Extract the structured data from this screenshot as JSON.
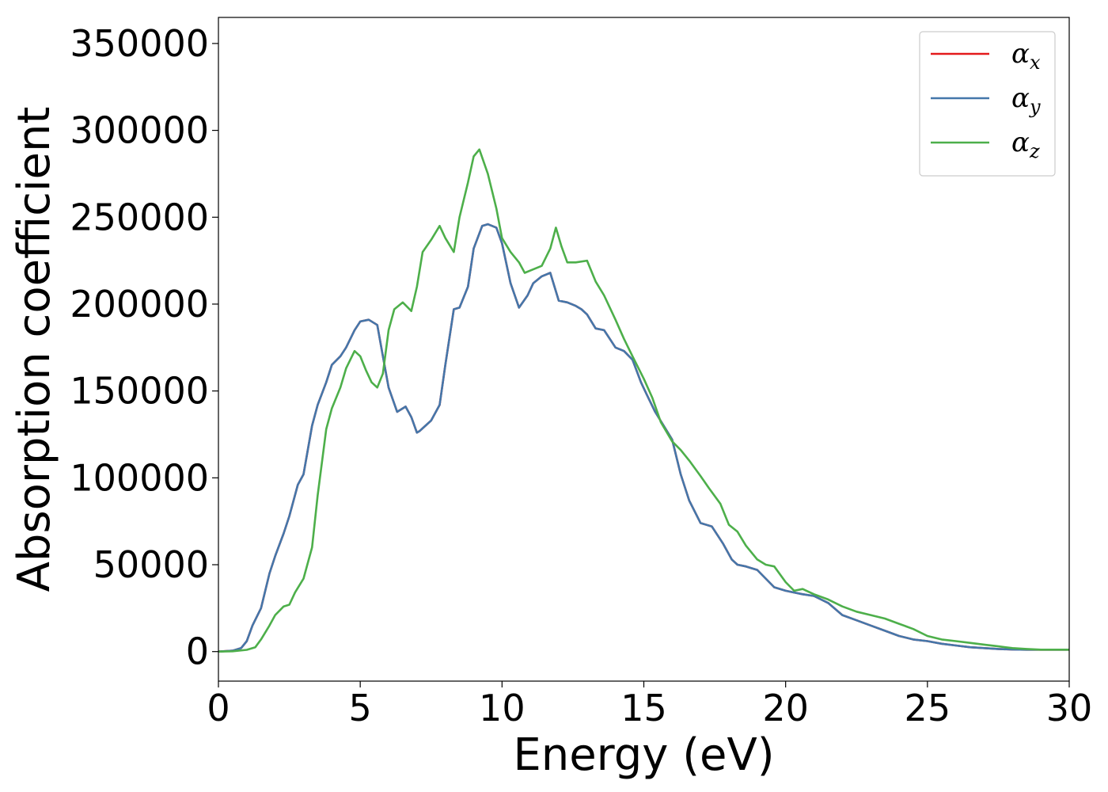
{
  "chart_data": {
    "type": "line",
    "xlabel": "Energy (eV)",
    "ylabel": "Absorption coefficient",
    "xlim": [
      0,
      30
    ],
    "ylim": [
      -17000,
      365000
    ],
    "x_ticks": [
      0,
      5,
      10,
      15,
      20,
      25,
      30
    ],
    "x_tick_labels": [
      "0",
      "5",
      "10",
      "15",
      "20",
      "25",
      "30"
    ],
    "y_ticks": [
      0,
      50000,
      100000,
      150000,
      200000,
      250000,
      300000,
      350000
    ],
    "y_tick_labels": [
      "0",
      "50000",
      "100000",
      "150000",
      "200000",
      "250000",
      "300000",
      "350000"
    ],
    "grid": false,
    "legend_position": "top-right",
    "series": [
      {
        "name": "α",
        "subscript": "x",
        "color": "#e41a1c",
        "x": [
          0,
          0.5,
          0.8,
          1.0,
          1.2,
          1.5,
          1.8,
          2.0,
          2.3,
          2.5,
          2.8,
          3.0,
          3.3,
          3.5,
          3.8,
          4.0,
          4.3,
          4.5,
          4.8,
          5.0,
          5.3,
          5.6,
          5.8,
          6.0,
          6.3,
          6.6,
          6.8,
          7.0,
          7.1,
          7.3,
          7.5,
          7.8,
          8.0,
          8.3,
          8.5,
          8.8,
          9.0,
          9.3,
          9.5,
          9.8,
          10.0,
          10.3,
          10.6,
          10.9,
          11.1,
          11.4,
          11.7,
          12.0,
          12.3,
          12.6,
          12.8,
          13.0,
          13.3,
          13.6,
          13.8,
          14.0,
          14.3,
          14.6,
          14.9,
          15.1,
          15.4,
          15.7,
          16.0,
          16.3,
          16.6,
          17.0,
          17.4,
          17.8,
          18.1,
          18.3,
          18.6,
          19.0,
          19.3,
          19.6,
          20.0,
          20.3,
          20.6,
          21.0,
          21.5,
          22.0,
          22.5,
          23.0,
          23.5,
          24.0,
          24.5,
          25.0,
          25.5,
          26.0,
          26.5,
          27.0,
          27.5,
          28.0,
          28.5,
          29.0,
          29.5,
          30.0
        ],
        "values": [
          0,
          500,
          2000,
          6000,
          15000,
          25000,
          45000,
          55000,
          68000,
          78000,
          96000,
          102000,
          130000,
          142000,
          155000,
          165000,
          170000,
          175000,
          185000,
          190000,
          191000,
          188000,
          170000,
          152000,
          138000,
          141000,
          135000,
          126000,
          127000,
          130000,
          133000,
          142000,
          165000,
          197000,
          198000,
          210000,
          232000,
          245000,
          246000,
          244000,
          235000,
          212000,
          198000,
          205000,
          212000,
          216000,
          218000,
          202000,
          201000,
          199000,
          197000,
          194000,
          186000,
          185000,
          180000,
          175000,
          173000,
          168000,
          155000,
          148000,
          138000,
          130000,
          122000,
          102000,
          87000,
          74000,
          72000,
          62000,
          53000,
          50000,
          49000,
          47000,
          42000,
          37000,
          35000,
          34000,
          33000,
          32000,
          28000,
          21000,
          18000,
          15000,
          12000,
          9000,
          7000,
          6000,
          4500,
          3500,
          2500,
          2000,
          1500,
          1200,
          1100,
          1100,
          1100,
          1100
        ]
      },
      {
        "name": "α",
        "subscript": "y",
        "color": "#4477aa",
        "x": [
          0,
          0.5,
          0.8,
          1.0,
          1.2,
          1.5,
          1.8,
          2.0,
          2.3,
          2.5,
          2.8,
          3.0,
          3.3,
          3.5,
          3.8,
          4.0,
          4.3,
          4.5,
          4.8,
          5.0,
          5.3,
          5.6,
          5.8,
          6.0,
          6.3,
          6.6,
          6.8,
          7.0,
          7.1,
          7.3,
          7.5,
          7.8,
          8.0,
          8.3,
          8.5,
          8.8,
          9.0,
          9.3,
          9.5,
          9.8,
          10.0,
          10.3,
          10.6,
          10.9,
          11.1,
          11.4,
          11.7,
          12.0,
          12.3,
          12.6,
          12.8,
          13.0,
          13.3,
          13.6,
          13.8,
          14.0,
          14.3,
          14.6,
          14.9,
          15.1,
          15.4,
          15.7,
          16.0,
          16.3,
          16.6,
          17.0,
          17.4,
          17.8,
          18.1,
          18.3,
          18.6,
          19.0,
          19.3,
          19.6,
          20.0,
          20.3,
          20.6,
          21.0,
          21.5,
          22.0,
          22.5,
          23.0,
          23.5,
          24.0,
          24.5,
          25.0,
          25.5,
          26.0,
          26.5,
          27.0,
          27.5,
          28.0,
          28.5,
          29.0,
          29.5,
          30.0
        ],
        "values": [
          0,
          500,
          2000,
          6000,
          15000,
          25000,
          45000,
          55000,
          68000,
          78000,
          96000,
          102000,
          130000,
          142000,
          155000,
          165000,
          170000,
          175000,
          185000,
          190000,
          191000,
          188000,
          170000,
          152000,
          138000,
          141000,
          135000,
          126000,
          127000,
          130000,
          133000,
          142000,
          165000,
          197000,
          198000,
          210000,
          232000,
          245000,
          246000,
          244000,
          235000,
          212000,
          198000,
          205000,
          212000,
          216000,
          218000,
          202000,
          201000,
          199000,
          197000,
          194000,
          186000,
          185000,
          180000,
          175000,
          173000,
          168000,
          155000,
          148000,
          138000,
          130000,
          122000,
          102000,
          87000,
          74000,
          72000,
          62000,
          53000,
          50000,
          49000,
          47000,
          42000,
          37000,
          35000,
          34000,
          33000,
          32000,
          28000,
          21000,
          18000,
          15000,
          12000,
          9000,
          7000,
          6000,
          4500,
          3500,
          2500,
          2000,
          1500,
          1200,
          1100,
          1100,
          1100,
          1100
        ]
      },
      {
        "name": "α",
        "subscript": "z",
        "color": "#4daf4a",
        "x": [
          0,
          0.5,
          1.0,
          1.3,
          1.5,
          1.8,
          2.0,
          2.3,
          2.5,
          2.7,
          3.0,
          3.3,
          3.5,
          3.8,
          4.0,
          4.3,
          4.5,
          4.8,
          5.0,
          5.2,
          5.4,
          5.6,
          5.8,
          6.0,
          6.2,
          6.5,
          6.8,
          7.0,
          7.2,
          7.5,
          7.8,
          8.0,
          8.3,
          8.5,
          8.8,
          9.0,
          9.2,
          9.5,
          9.8,
          10.0,
          10.3,
          10.6,
          10.8,
          11.1,
          11.4,
          11.7,
          11.9,
          12.1,
          12.3,
          12.6,
          13.0,
          13.3,
          13.6,
          14.0,
          14.3,
          14.6,
          15.0,
          15.3,
          15.6,
          16.0,
          16.3,
          16.6,
          17.0,
          17.3,
          17.7,
          18.0,
          18.3,
          18.6,
          19.0,
          19.3,
          19.6,
          20.0,
          20.3,
          20.6,
          21.0,
          21.5,
          22.0,
          22.5,
          23.0,
          23.5,
          24.0,
          24.5,
          25.0,
          25.5,
          26.0,
          26.5,
          27.0,
          27.5,
          28.0,
          28.5,
          29.0,
          29.5,
          30.0
        ],
        "values": [
          0,
          200,
          1000,
          2500,
          7000,
          15000,
          21000,
          26000,
          27000,
          34000,
          42000,
          60000,
          90000,
          128000,
          140000,
          152000,
          163000,
          173000,
          170000,
          162000,
          155000,
          152000,
          160000,
          185000,
          197000,
          201000,
          196000,
          210000,
          230000,
          237000,
          245000,
          238000,
          230000,
          250000,
          270000,
          285000,
          289000,
          275000,
          255000,
          238000,
          230000,
          224000,
          218000,
          220000,
          222000,
          232000,
          244000,
          233000,
          224000,
          224000,
          225000,
          213000,
          205000,
          191000,
          180000,
          170000,
          157000,
          146000,
          132000,
          121000,
          116000,
          110000,
          101000,
          94000,
          85000,
          73000,
          69000,
          61000,
          53000,
          50000,
          49000,
          40000,
          35000,
          36000,
          33000,
          30000,
          26000,
          23000,
          21000,
          19000,
          16000,
          13000,
          9000,
          7000,
          6000,
          5000,
          4000,
          3000,
          2000,
          1500,
          1100,
          1100,
          1100
        ]
      }
    ]
  }
}
